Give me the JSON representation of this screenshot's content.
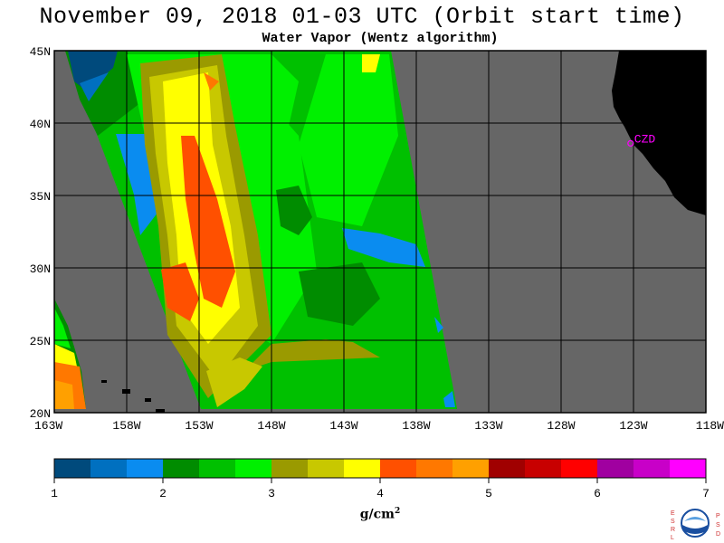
{
  "header": {
    "title": "November 09, 2018  01-03 UTC  (Orbit start time)",
    "subtitle": "Water Vapor (Wentz algorithm)"
  },
  "map": {
    "lat_range": [
      20,
      45
    ],
    "lon_range": [
      -163,
      -118
    ],
    "lat_ticks": [
      {
        "value": 45,
        "label": "45N"
      },
      {
        "value": 40,
        "label": "40N"
      },
      {
        "value": 35,
        "label": "35N"
      },
      {
        "value": 30,
        "label": "30N"
      },
      {
        "value": 25,
        "label": "25N"
      },
      {
        "value": 20,
        "label": "20N"
      }
    ],
    "lon_ticks": [
      {
        "value": -163,
        "label": "163W"
      },
      {
        "value": -158,
        "label": "158W"
      },
      {
        "value": -153,
        "label": "153W"
      },
      {
        "value": -148,
        "label": "148W"
      },
      {
        "value": -143,
        "label": "143W"
      },
      {
        "value": -138,
        "label": "138W"
      },
      {
        "value": -133,
        "label": "133W"
      },
      {
        "value": -128,
        "label": "128W"
      },
      {
        "value": -123,
        "label": "123W"
      },
      {
        "value": -118,
        "label": "118W"
      }
    ],
    "grid": true,
    "no_data_color": "#666666",
    "land_color": "#000000",
    "station": {
      "label": "CZD",
      "lat": 38.6,
      "lon": -123.2,
      "color": "#ff00ff"
    }
  },
  "colorbar": {
    "units": "g/cm",
    "units_sup": "2",
    "min": 1,
    "max": 7,
    "tick_labels": [
      "1",
      "2",
      "3",
      "4",
      "5",
      "6",
      "7"
    ],
    "colors": [
      "#004a7c",
      "#0070c0",
      "#0a8cf0",
      "#008c00",
      "#00c000",
      "#00f000",
      "#9a9a00",
      "#c8c800",
      "#ffff00",
      "#ff5000",
      "#ff7800",
      "#ffa000",
      "#a00000",
      "#c80000",
      "#ff0000",
      "#a000a0",
      "#c800c8",
      "#ff00ff"
    ]
  },
  "logo": {
    "left_letters": [
      "E",
      "S",
      "R",
      "L"
    ],
    "right_letters": [
      "P",
      "S",
      "D"
    ],
    "center_text": "NOAA"
  }
}
